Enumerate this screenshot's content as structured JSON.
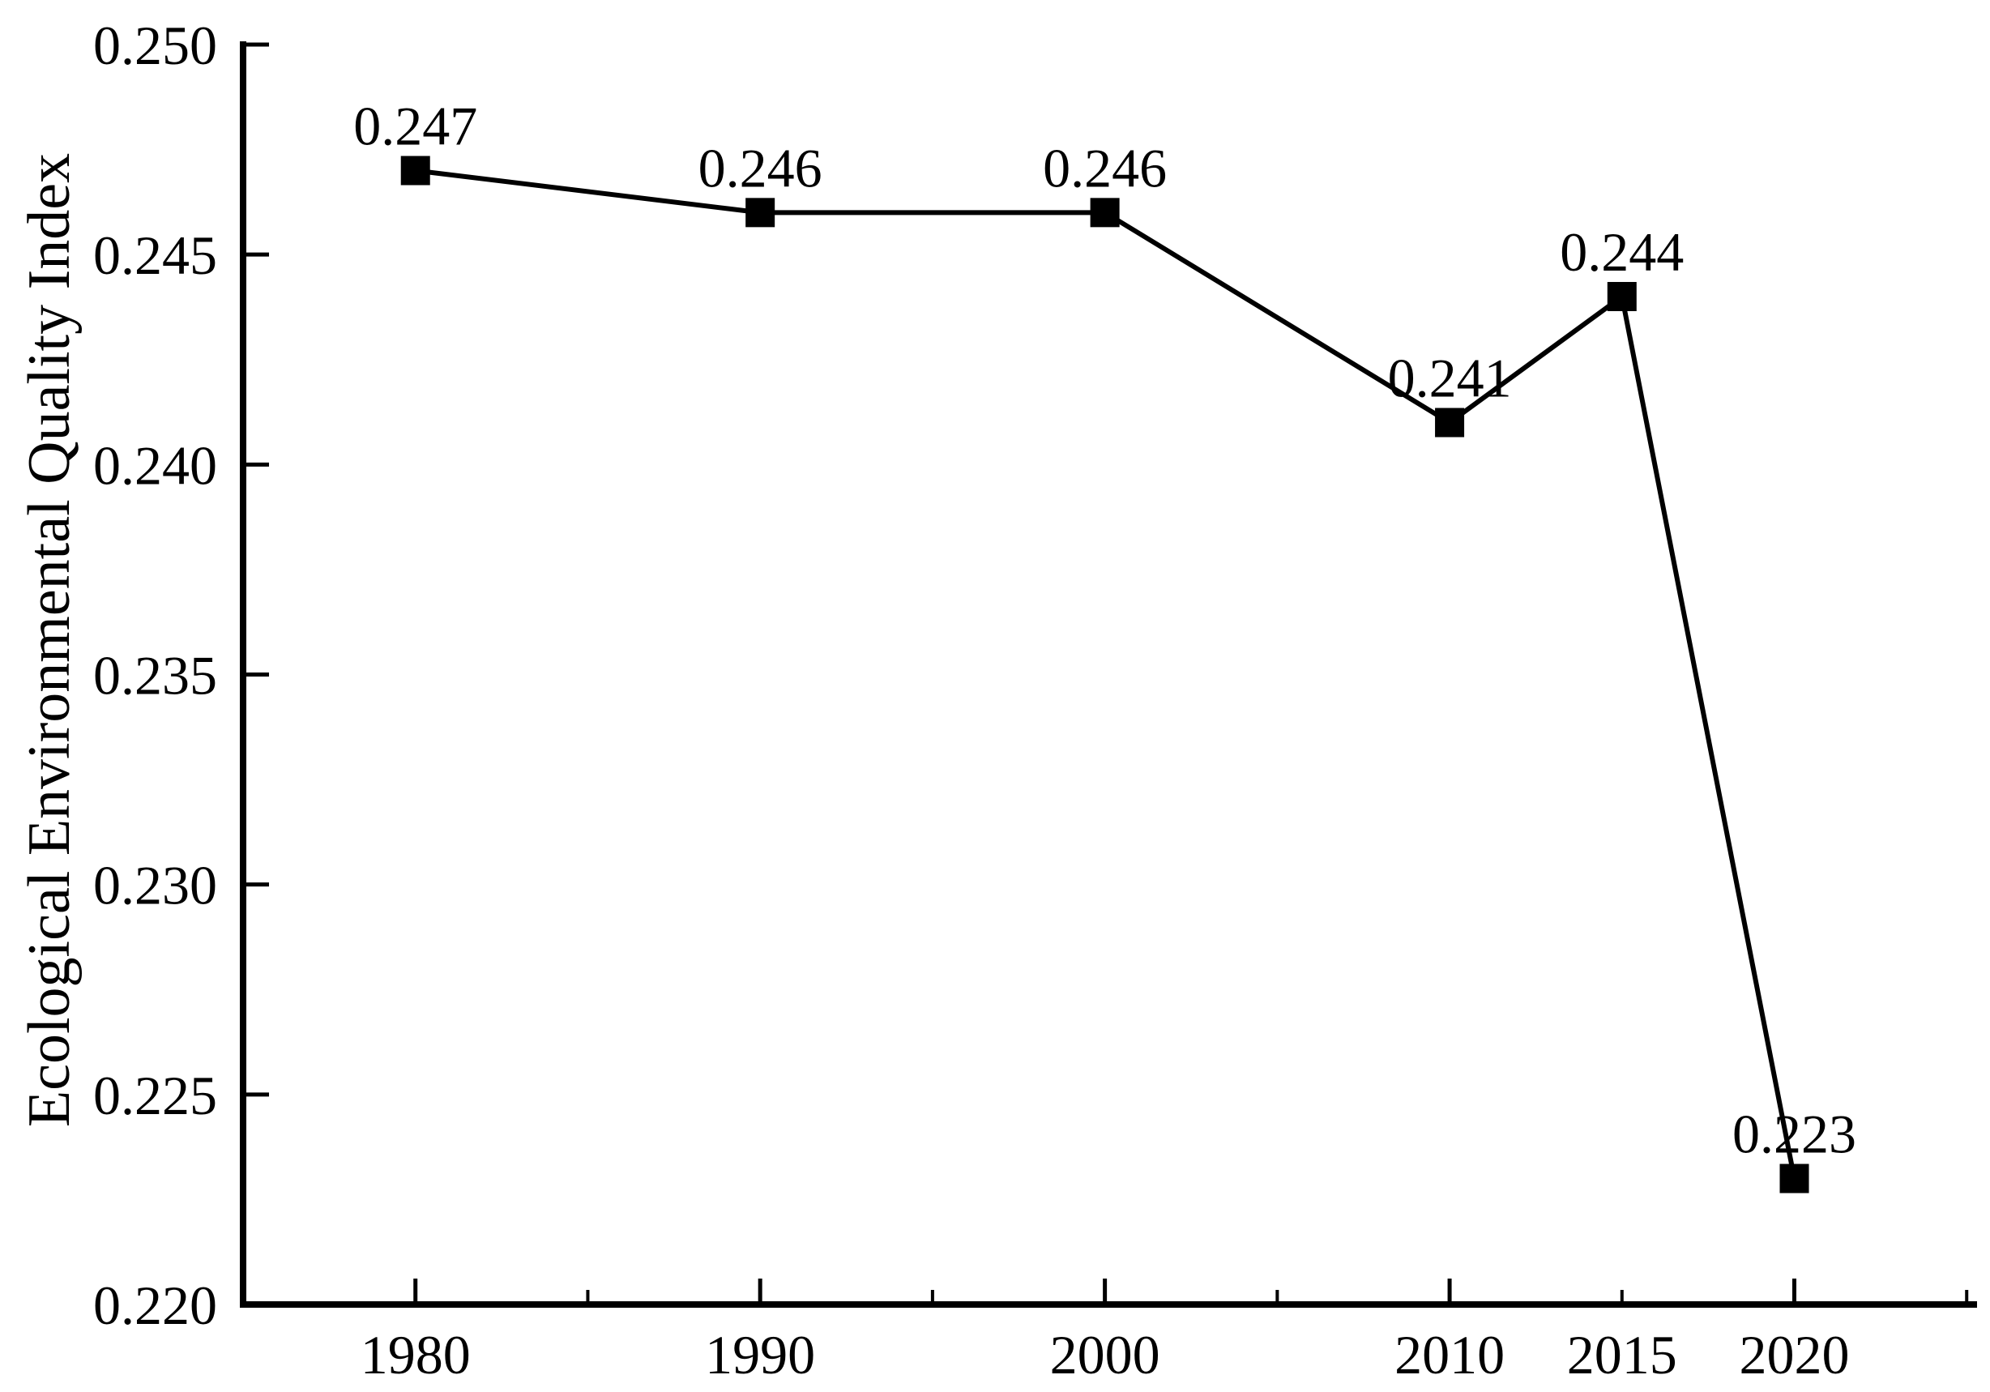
{
  "figure": {
    "background_color": "#ffffff",
    "ink_color": "#000000"
  },
  "chart_data": {
    "type": "line",
    "title": "",
    "xlabel": "",
    "ylabel": "Ecological Environmental Quality Index",
    "x": [
      1980,
      1990,
      2000,
      2010,
      2015,
      2020
    ],
    "series": [
      {
        "name": "Ecological Environmental Quality Index",
        "values": [
          0.247,
          0.246,
          0.246,
          0.241,
          0.244,
          0.223
        ],
        "point_labels": [
          "0.247",
          "0.246",
          "0.246",
          "0.241",
          "0.244",
          "0.223"
        ]
      }
    ],
    "xlim": [
      1975,
      2025.3
    ],
    "ylim": [
      0.22,
      0.25
    ],
    "y_ticks": [
      0.25,
      0.245,
      0.24,
      0.235,
      0.23,
      0.225,
      0.22
    ],
    "y_tick_labels": [
      "0.250",
      "0.245",
      "0.240",
      "0.235",
      "0.230",
      "0.225",
      "0.220"
    ],
    "x_major_ticks": [
      1980,
      1990,
      2000,
      2010,
      2020
    ],
    "x_minor_ticks": [
      1985,
      1995,
      2005,
      2015,
      2025
    ],
    "x_tick_labels": [
      {
        "year": 1980,
        "label": "1980"
      },
      {
        "year": 1990,
        "label": "1990"
      },
      {
        "year": 2000,
        "label": "2000"
      },
      {
        "year": 2010,
        "label": "2010"
      },
      {
        "year": 2015,
        "label": "2015"
      },
      {
        "year": 2020,
        "label": "2020"
      }
    ],
    "grid": false,
    "legend": "none",
    "marker": "filled-square",
    "line_color": "#000000",
    "marker_color": "#000000",
    "label_color": "#000000"
  }
}
